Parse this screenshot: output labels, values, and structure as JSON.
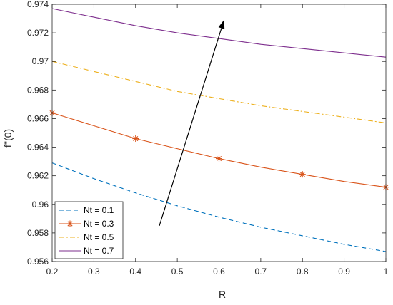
{
  "chart_data": {
    "type": "line",
    "xlabel": "R",
    "ylabel": "f''(0)",
    "xlim": [
      0.2,
      1.0
    ],
    "ylim": [
      0.956,
      0.974
    ],
    "xticks": [
      0.2,
      0.3,
      0.4,
      0.5,
      0.6,
      0.7,
      0.8,
      0.9,
      1.0
    ],
    "xtick_labels": [
      "0.2",
      "0.3",
      "0.4",
      "0.5",
      "0.6",
      "0.7",
      "0.8",
      "0.9",
      "1"
    ],
    "yticks": [
      0.956,
      0.958,
      0.96,
      0.962,
      0.964,
      0.966,
      0.968,
      0.97,
      0.972,
      0.974
    ],
    "ytick_labels": [
      "0.956",
      "0.958",
      "0.96",
      "0.962",
      "0.964",
      "0.966",
      "0.968",
      "0.97",
      "0.972",
      "0.974"
    ],
    "grid": false,
    "legend_position": "bottom-left",
    "x": [
      0.2,
      0.3,
      0.4,
      0.5,
      0.6,
      0.7,
      0.8,
      0.9,
      1.0
    ],
    "series": [
      {
        "name": "Nt = 0.1",
        "color": "#0072bd",
        "dash": "dashed",
        "marker": "none",
        "values": [
          0.9629,
          0.9618,
          0.9608,
          0.9599,
          0.9591,
          0.9584,
          0.9578,
          0.9572,
          0.9567
        ]
      },
      {
        "name": "Nt = 0.3",
        "color": "#d95319",
        "dash": "solid",
        "marker": "asterisk",
        "values": [
          0.9664,
          0.9655,
          0.9646,
          0.9639,
          0.9632,
          0.9626,
          0.9621,
          0.9616,
          0.9612
        ]
      },
      {
        "name": "Nt = 0.5",
        "color": "#edb120",
        "dash": "dashdot",
        "marker": "none",
        "values": [
          0.97,
          0.9693,
          0.9686,
          0.9679,
          0.9674,
          0.9669,
          0.9665,
          0.9661,
          0.9657
        ]
      },
      {
        "name": "Nt = 0.7",
        "color": "#7e2f8e",
        "dash": "solid",
        "marker": "none",
        "values": [
          0.9737,
          0.9731,
          0.9725,
          0.972,
          0.9716,
          0.9712,
          0.9709,
          0.9706,
          0.9703
        ]
      }
    ],
    "marker_x": [
      0.2,
      0.4,
      0.6,
      0.8,
      1.0
    ],
    "annotations": [
      {
        "type": "arrow",
        "from": [
          0.457,
          0.9585
        ],
        "to": [
          0.612,
          0.9729
        ],
        "color": "#000000"
      }
    ]
  }
}
